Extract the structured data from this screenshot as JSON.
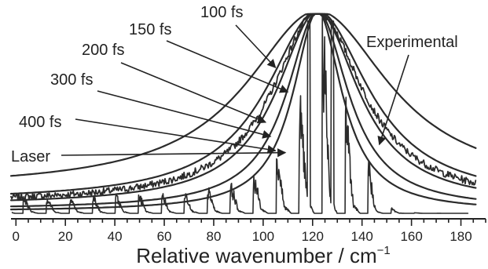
{
  "chart_data": {
    "type": "line",
    "xlabel": "Relative wavenumber / cm",
    "xlabel_superscript": "−1",
    "xlim": [
      -2,
      190
    ],
    "ylim": [
      0,
      1.0
    ],
    "x_ticks": [
      "0",
      "20",
      "40",
      "60",
      "80",
      "100",
      "120",
      "140",
      "160",
      "180"
    ],
    "x_minor_step": 5,
    "grid": false,
    "peak_x": 122,
    "series": [
      {
        "name": "100 fs",
        "fwhm": 70,
        "tail": 0.12
      },
      {
        "name": "150 fs",
        "fwhm": 50,
        "tail": 0.06
      },
      {
        "name": "200 fs",
        "fwhm": 40,
        "tail": 0.04
      },
      {
        "name": "300 fs",
        "fwhm": 30,
        "tail": 0.02
      },
      {
        "name": "400 fs",
        "fwhm": 24,
        "tail": 0.01
      },
      {
        "name": "Experimental",
        "fwhm": 44,
        "tail": 0.05
      },
      {
        "name": "Laser",
        "comb_spacing": 9.3,
        "envelope_fwhm": 22,
        "envelope_peak_x": 125
      }
    ],
    "annotations": [
      {
        "text": "100 fs",
        "target": {
          "x": 105,
          "y": 0.72
        }
      },
      {
        "text": "150 fs",
        "target": {
          "x": 110,
          "y": 0.6
        }
      },
      {
        "text": "200 fs",
        "target": {
          "x": 101,
          "y": 0.45
        }
      },
      {
        "text": "300 fs",
        "target": {
          "x": 103,
          "y": 0.38
        }
      },
      {
        "text": "400 fs",
        "target": {
          "x": 105,
          "y": 0.31
        }
      },
      {
        "text": "Laser",
        "target": {
          "x": 109,
          "y": 0.3
        }
      },
      {
        "text": "Experimental",
        "target": {
          "x": 147,
          "y": 0.34
        }
      }
    ]
  }
}
